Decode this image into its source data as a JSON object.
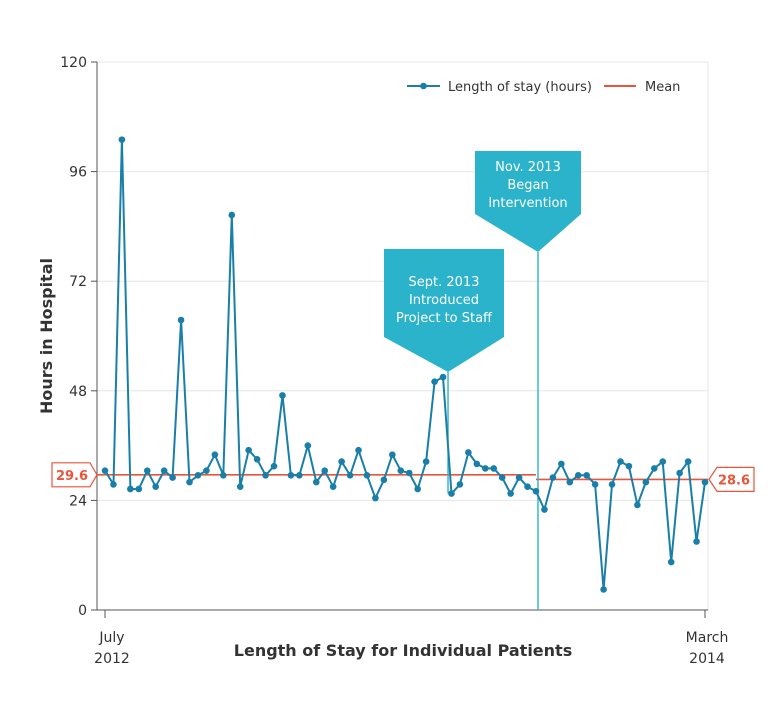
{
  "chart_data": {
    "type": "line",
    "ylabel": "Hours in Hospital",
    "xlabel": "Length of Stay for Individual Patients",
    "ylim": [
      0,
      120
    ],
    "y_ticks": [
      "0",
      "24",
      "48",
      "72",
      "96",
      "120"
    ],
    "x_start_label": [
      "July",
      "2012"
    ],
    "x_end_label": [
      "March",
      "2014"
    ],
    "grid": true,
    "legend_position": "top-right",
    "colors": {
      "series": "#1a7fa8",
      "mean": "#e8553a",
      "callout": "#2bb3cc",
      "grid": "#e6e6e6"
    },
    "series": [
      {
        "name": "Length of stay (hours)",
        "values": [
          30.5,
          27.5,
          103,
          26.5,
          26.5,
          30.5,
          27,
          30.5,
          29,
          63.5,
          28,
          29.5,
          30.5,
          34,
          29.5,
          86.5,
          27,
          35,
          33,
          29.5,
          31.5,
          47,
          29.5,
          29.5,
          36,
          28,
          30.5,
          27,
          32.5,
          29.5,
          35,
          29.5,
          24.5,
          28.5,
          34,
          30.5,
          30,
          26.5,
          32.5,
          50,
          51,
          25.5,
          27.5,
          34.5,
          32,
          31,
          31,
          29,
          25.5,
          29,
          27,
          26,
          22,
          29,
          32,
          28,
          29.5,
          29.5,
          27.5,
          4.5,
          27.5,
          32.5,
          31.5,
          23,
          28,
          31,
          32.5,
          10.5,
          30,
          32.5,
          15,
          28
        ]
      }
    ],
    "mean": {
      "name": "Mean",
      "segments": [
        {
          "from_index": 0,
          "to_index": 51,
          "value": 29.6,
          "label": "29.6"
        },
        {
          "from_index": 51,
          "to_index": 71,
          "value": 28.6,
          "label": "28.6"
        }
      ]
    },
    "annotations": [
      {
        "lines": [
          "Sept. 2013",
          "Introduced",
          "Project to Staff"
        ],
        "index": 40
      },
      {
        "lines": [
          "Nov. 2013",
          "Began",
          "Intervention"
        ],
        "index": 51
      }
    ]
  }
}
